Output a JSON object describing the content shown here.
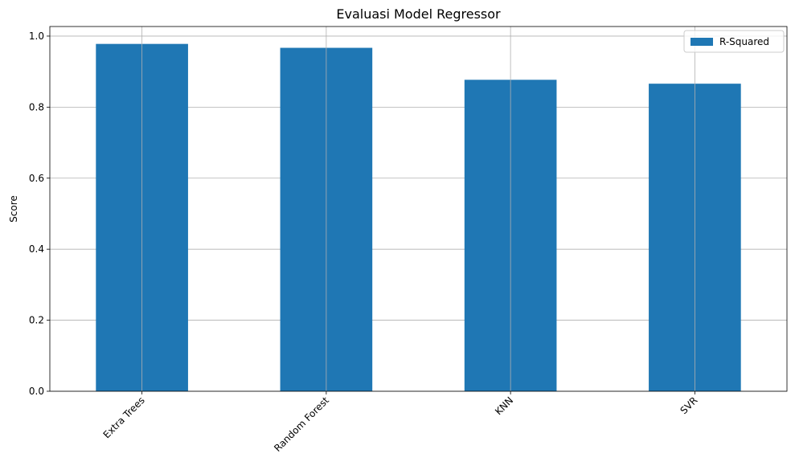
{
  "chart_data": {
    "type": "bar",
    "title": "Evaluasi Model Regressor",
    "xlabel": "",
    "ylabel": "Score",
    "categories": [
      "Extra Trees",
      "Random Forest",
      "KNN",
      "SVR"
    ],
    "series": [
      {
        "name": "R-Squared",
        "values": [
          0.978,
          0.967,
          0.877,
          0.866
        ],
        "color": "#1f77b4"
      }
    ],
    "ylim": [
      0,
      1.027
    ],
    "yticks": [
      0.0,
      0.2,
      0.4,
      0.6,
      0.8,
      1.0
    ],
    "ytick_labels": [
      "0.0",
      "0.2",
      "0.4",
      "0.6",
      "0.8",
      "1.0"
    ],
    "xtick_rotation_deg": 45,
    "grid": true,
    "legend_position": "top-right"
  }
}
